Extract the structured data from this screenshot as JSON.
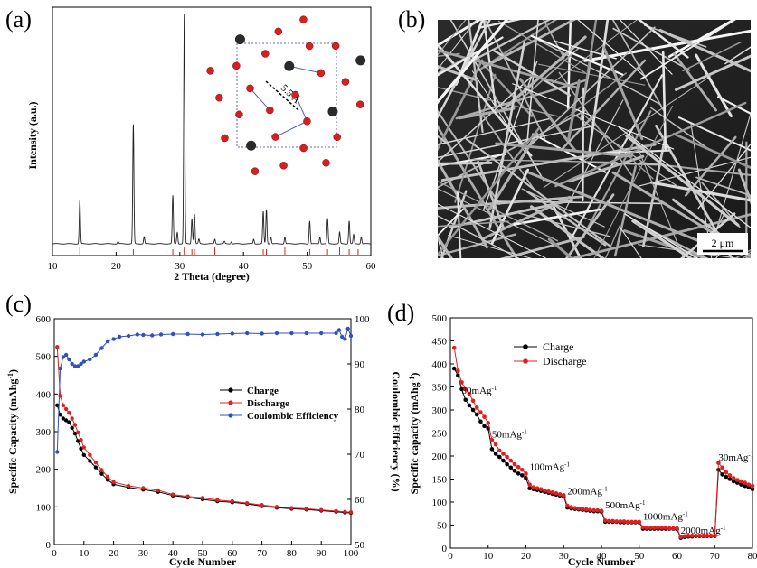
{
  "chart_data": [
    {
      "panel": "(a)",
      "type": "line",
      "xlabel": "2 Theta (degree)",
      "ylabel": "Intensity (a.u.)",
      "xlim": [
        10,
        60
      ],
      "xticks": [
        10,
        20,
        30,
        40,
        50,
        60
      ],
      "peaks": [
        {
          "x": 14.3,
          "y": 19
        },
        {
          "x": 20.3,
          "y": 1
        },
        {
          "x": 22.7,
          "y": 52
        },
        {
          "x": 24.4,
          "y": 3
        },
        {
          "x": 28.9,
          "y": 21
        },
        {
          "x": 29.6,
          "y": 5
        },
        {
          "x": 30.7,
          "y": 100
        },
        {
          "x": 31.9,
          "y": 11
        },
        {
          "x": 32.3,
          "y": 13
        },
        {
          "x": 33.0,
          "y": 2
        },
        {
          "x": 35.5,
          "y": 2
        },
        {
          "x": 37.0,
          "y": 1
        },
        {
          "x": 38.1,
          "y": 1
        },
        {
          "x": 41.6,
          "y": 2
        },
        {
          "x": 43.1,
          "y": 14
        },
        {
          "x": 43.6,
          "y": 15
        },
        {
          "x": 44.3,
          "y": 3
        },
        {
          "x": 46.5,
          "y": 3
        },
        {
          "x": 50.4,
          "y": 10
        },
        {
          "x": 52.0,
          "y": 3
        },
        {
          "x": 53.2,
          "y": 11
        },
        {
          "x": 55.1,
          "y": 5
        },
        {
          "x": 56.6,
          "y": 10
        },
        {
          "x": 57.3,
          "y": 4
        },
        {
          "x": 58.5,
          "y": 3
        }
      ],
      "reference_sticks": [
        14.3,
        22.7,
        28.9,
        30.7,
        31.9,
        32.3,
        35.5,
        43.1,
        43.6,
        46.5,
        50.4,
        53.2,
        55.1,
        56.6,
        58.0
      ],
      "inset_label": "5.5 Å",
      "inset_colors": {
        "oxygen": "#d62020",
        "metal": "#2a2a2a",
        "link": "#5060c0"
      }
    },
    {
      "panel": "(b)",
      "type": "image",
      "scale_bar": "2 μm"
    },
    {
      "panel": "(c)",
      "type": "line",
      "xlabel": "Cycle Number",
      "ylabel": "Specific Capacity (mAhg",
      "ylabel_sup": "-1",
      "y2label": "Coulombic Efficiency (%)",
      "xlim": [
        0,
        100
      ],
      "ylim": [
        0,
        600
      ],
      "y2lim": [
        50,
        100
      ],
      "xticks": [
        0,
        10,
        20,
        30,
        40,
        50,
        60,
        70,
        80,
        90,
        100
      ],
      "yticks": [
        0,
        100,
        200,
        300,
        400,
        500,
        600
      ],
      "y2ticks": [
        50,
        60,
        70,
        80,
        90,
        100
      ],
      "legend_position": "center-right",
      "series": [
        {
          "name": "Charge",
          "color": "#000000",
          "axis": "left",
          "x": [
            1,
            2,
            3,
            4,
            5,
            6,
            7,
            8,
            9,
            10,
            12,
            14,
            16,
            18,
            20,
            25,
            30,
            35,
            40,
            45,
            50,
            55,
            60,
            65,
            70,
            75,
            80,
            85,
            90,
            95,
            98,
            100
          ],
          "y": [
            370,
            345,
            335,
            330,
            325,
            310,
            295,
            275,
            255,
            238,
            222,
            205,
            188,
            172,
            160,
            152,
            146,
            140,
            130,
            125,
            120,
            115,
            112,
            108,
            102,
            98,
            95,
            93,
            90,
            87,
            85,
            84
          ]
        },
        {
          "name": "Discharge",
          "color": "#e02020",
          "axis": "left",
          "x": [
            1,
            2,
            3,
            4,
            5,
            6,
            7,
            8,
            9,
            10,
            12,
            14,
            16,
            18,
            20,
            25,
            30,
            35,
            40,
            45,
            50,
            55,
            60,
            65,
            70,
            75,
            80,
            85,
            90,
            95,
            98,
            100
          ],
          "y": [
            525,
            395,
            370,
            360,
            350,
            335,
            318,
            298,
            278,
            258,
            238,
            218,
            198,
            180,
            166,
            156,
            150,
            144,
            133,
            128,
            124,
            118,
            115,
            110,
            105,
            100,
            97,
            95,
            92,
            89,
            87,
            86
          ]
        },
        {
          "name": "Coulombic Efficiency",
          "color": "#3050c0",
          "axis": "right",
          "x": [
            1,
            2,
            3,
            4,
            5,
            6,
            7,
            8,
            9,
            10,
            12,
            14,
            16,
            18,
            20,
            22,
            25,
            28,
            30,
            33,
            36,
            40,
            45,
            50,
            55,
            60,
            65,
            70,
            75,
            80,
            85,
            90,
            95,
            96,
            97,
            98,
            99,
            100
          ],
          "y": [
            70.5,
            89,
            91.5,
            92,
            91,
            90,
            89.5,
            89.5,
            90,
            90.5,
            91,
            92,
            93.5,
            95,
            95.5,
            96,
            96.2,
            96.5,
            96.4,
            96.3,
            96.5,
            96.6,
            96.6,
            96.5,
            96.6,
            96.7,
            96.8,
            96.7,
            96.8,
            96.8,
            96.8,
            96.8,
            96.8,
            97.5,
            96,
            95.5,
            97.8,
            96.2
          ]
        }
      ]
    },
    {
      "panel": "(d)",
      "type": "line",
      "xlabel": "Cycle Number",
      "ylabel": "Specific capacity (mAhg",
      "ylabel_sup": "-1",
      "xlim": [
        0,
        80
      ],
      "ylim": [
        0,
        500
      ],
      "xticks": [
        0,
        10,
        20,
        30,
        40,
        50,
        60,
        70,
        80
      ],
      "yticks": [
        0,
        50,
        100,
        150,
        200,
        250,
        300,
        350,
        400,
        450,
        500
      ],
      "legend_position": "upper-center",
      "series": [
        {
          "name": "Charge",
          "color": "#000000",
          "x": [
            1,
            2,
            3,
            4,
            5,
            6,
            7,
            8,
            9,
            10,
            11,
            12,
            13,
            14,
            15,
            16,
            17,
            18,
            19,
            20,
            21,
            22,
            23,
            24,
            25,
            26,
            27,
            28,
            29,
            30,
            31,
            32,
            33,
            34,
            35,
            36,
            37,
            38,
            39,
            40,
            41,
            42,
            43,
            44,
            45,
            46,
            47,
            48,
            49,
            50,
            51,
            52,
            53,
            54,
            55,
            56,
            57,
            58,
            59,
            60,
            61,
            62,
            63,
            64,
            65,
            66,
            67,
            68,
            69,
            70,
            71,
            72,
            73,
            74,
            75,
            76,
            77,
            78,
            79,
            80
          ],
          "y": [
            390,
            375,
            345,
            322,
            310,
            300,
            290,
            275,
            265,
            260,
            215,
            205,
            198,
            190,
            182,
            175,
            168,
            162,
            158,
            152,
            130,
            128,
            126,
            124,
            122,
            120,
            118,
            116,
            114,
            112,
            88,
            86,
            85,
            84,
            83,
            82,
            81,
            80,
            80,
            79,
            57,
            57,
            57,
            57,
            56,
            56,
            56,
            56,
            56,
            56,
            42,
            42,
            42,
            42,
            42,
            42,
            42,
            42,
            42,
            41,
            22,
            24,
            25,
            25,
            26,
            26,
            26,
            26,
            26,
            26,
            170,
            160,
            155,
            150,
            145,
            142,
            138,
            135,
            132,
            128
          ]
        },
        {
          "name": "Discharge",
          "color": "#e02020",
          "x": [
            1,
            2,
            3,
            4,
            5,
            6,
            7,
            8,
            9,
            10,
            11,
            12,
            13,
            14,
            15,
            16,
            17,
            18,
            19,
            20,
            21,
            22,
            23,
            24,
            25,
            26,
            27,
            28,
            29,
            30,
            31,
            32,
            33,
            34,
            35,
            36,
            37,
            38,
            39,
            40,
            41,
            42,
            43,
            44,
            45,
            46,
            47,
            48,
            49,
            50,
            51,
            52,
            53,
            54,
            55,
            56,
            57,
            58,
            59,
            60,
            61,
            62,
            63,
            64,
            65,
            66,
            67,
            68,
            69,
            70,
            71,
            72,
            73,
            74,
            75,
            76,
            77,
            78,
            79,
            80
          ],
          "y": [
            435,
            385,
            360,
            345,
            335,
            320,
            305,
            295,
            285,
            272,
            235,
            225,
            212,
            205,
            198,
            190,
            182,
            176,
            170,
            162,
            138,
            132,
            130,
            128,
            125,
            123,
            121,
            119,
            117,
            115,
            92,
            89,
            87,
            86,
            85,
            84,
            83,
            82,
            82,
            81,
            60,
            59,
            59,
            58,
            58,
            58,
            57,
            57,
            57,
            57,
            45,
            44,
            44,
            44,
            44,
            44,
            44,
            43,
            43,
            43,
            24,
            26,
            27,
            27,
            27,
            27,
            27,
            27,
            27,
            27,
            185,
            175,
            165,
            158,
            152,
            148,
            145,
            142,
            138,
            135
          ]
        }
      ],
      "annotations": [
        {
          "text": "30mAg",
          "x": 3,
          "y": 335
        },
        {
          "text": "50mAg",
          "x": 11,
          "y": 240
        },
        {
          "text": "100mAg",
          "x": 21,
          "y": 170
        },
        {
          "text": "200mAg",
          "x": 31,
          "y": 117
        },
        {
          "text": "500mAg",
          "x": 41,
          "y": 86
        },
        {
          "text": "1000mAg",
          "x": 51,
          "y": 62
        },
        {
          "text": "2000mAg",
          "x": 61,
          "y": 31
        },
        {
          "text": "30mAg",
          "x": 71,
          "y": 190
        }
      ],
      "annotation_sup": "-1"
    }
  ],
  "labels": {
    "a": "(a)",
    "b": "(b)",
    "c": "(c)",
    "d": "(d)"
  }
}
